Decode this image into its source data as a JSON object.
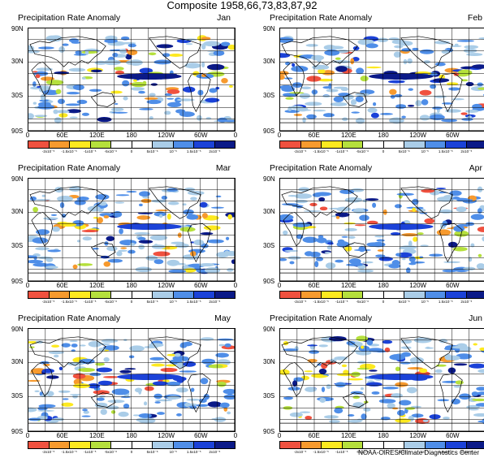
{
  "title": "Composite 1958,66,73,83,87,92",
  "panel_title": "Precipitation Rate Anomaly",
  "panels": [
    {
      "month": "Jan"
    },
    {
      "month": "Feb"
    },
    {
      "month": "Mar"
    },
    {
      "month": "Apr"
    },
    {
      "month": "May"
    },
    {
      "month": "Jun"
    }
  ],
  "lat_labels": [
    "90N",
    "30N",
    "30S",
    "90S"
  ],
  "lon_labels": [
    "0",
    "60E",
    "120E",
    "180",
    "120W",
    "60W",
    "0"
  ],
  "colorbar": {
    "colors": [
      "#f0513f",
      "#f79a2e",
      "#fde91f",
      "#b5e03c",
      "#ffffff",
      "#ffffff",
      "#aacde8",
      "#4f8ee8",
      "#1b42d8",
      "#0b1a88"
    ],
    "tick_labels": [
      "-2x10⁻⁵",
      "-1.5x10⁻⁵",
      "-1x10⁻⁵",
      "-5x10⁻⁶",
      "0",
      "5x10⁻⁶",
      "10⁻⁵",
      "1.5x10⁻⁵",
      "2x10⁻⁵"
    ]
  },
  "credit": "NOAA-CIRES/Climate Diagnostics Center"
}
